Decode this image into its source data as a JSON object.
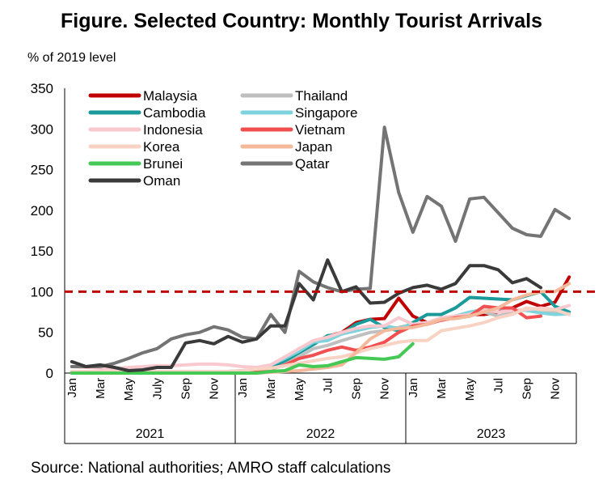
{
  "chart_data": {
    "type": "line",
    "title": "Figure. Selected Country: Monthly Tourist Arrivals",
    "ylabel": "% of 2019 level",
    "source": "Source: National authorities; AMRO staff calculations",
    "ylim": [
      0,
      350
    ],
    "yticks": [
      "0",
      "50",
      "100",
      "150",
      "200",
      "250",
      "300",
      "350"
    ],
    "ytick_values": [
      0,
      50,
      100,
      150,
      200,
      250,
      300,
      350
    ],
    "month_tick_labels": [
      "Jan",
      "Mar",
      "May",
      "July",
      "Sep",
      "Nov",
      "Jan",
      "Mar",
      "May",
      "Jul",
      "Sep",
      "Nov",
      "Jan",
      "Mar",
      "May",
      "Jul",
      "Sep",
      "Nov"
    ],
    "years": [
      "2021",
      "2022",
      "2023"
    ],
    "reference_line": {
      "value": 100,
      "color": "#c00000"
    },
    "legend_placement": "top-left",
    "series": [
      {
        "name": "Malaysia",
        "color": "#c00000",
        "values": [
          1,
          1,
          1,
          1,
          1,
          1,
          1,
          1,
          1,
          1,
          1,
          1,
          2,
          3,
          8,
          18,
          30,
          38,
          45,
          50,
          62,
          66,
          67,
          92,
          70,
          62,
          65,
          68,
          72,
          72,
          75,
          80,
          88,
          82,
          87,
          118
        ]
      },
      {
        "name": "Thailand",
        "color": "#bfbfbf",
        "values": [
          2,
          2,
          2,
          2,
          2,
          2,
          2,
          2,
          2,
          2,
          2,
          2,
          3,
          4,
          8,
          12,
          20,
          30,
          34,
          40,
          45,
          50,
          52,
          56,
          60,
          62,
          65,
          70,
          72,
          75,
          70,
          75,
          78,
          75,
          74,
          75
        ]
      },
      {
        "name": "Cambodia",
        "color": "#1a9a9a",
        "values": [
          1,
          1,
          1,
          1,
          1,
          1,
          1,
          1,
          1,
          1,
          1,
          1,
          2,
          3,
          8,
          15,
          25,
          35,
          46,
          48,
          60,
          66,
          56,
          52,
          62,
          72,
          72,
          80,
          93,
          92,
          91,
          90,
          95,
          100,
          82,
          75
        ]
      },
      {
        "name": "Singapore",
        "color": "#7fd3dc",
        "values": [
          2,
          2,
          2,
          2,
          2,
          2,
          2,
          2,
          2,
          2,
          2,
          2,
          3,
          4,
          10,
          18,
          27,
          38,
          40,
          48,
          52,
          56,
          58,
          55,
          60,
          62,
          66,
          70,
          75,
          78,
          80,
          78,
          77,
          74,
          72,
          73
        ]
      },
      {
        "name": "Indonesia",
        "color": "#f9c9cf",
        "values": [
          8,
          7,
          6,
          6,
          7,
          8,
          9,
          9,
          10,
          11,
          11,
          10,
          8,
          7,
          10,
          20,
          30,
          40,
          44,
          50,
          55,
          58,
          58,
          68,
          60,
          62,
          68,
          70,
          72,
          78,
          75,
          77,
          78,
          80,
          78,
          83
        ]
      },
      {
        "name": "Vietnam",
        "color": "#f25050",
        "values": [
          1,
          1,
          1,
          1,
          1,
          1,
          1,
          1,
          1,
          1,
          1,
          1,
          2,
          3,
          5,
          10,
          18,
          22,
          28,
          32,
          28,
          32,
          38,
          50,
          58,
          60,
          65,
          68,
          70,
          82,
          80,
          80,
          68,
          70,
          null,
          null
        ]
      },
      {
        "name": "Korea",
        "color": "#f8d3c3",
        "values": [
          2,
          2,
          2,
          2,
          2,
          2,
          2,
          2,
          2,
          2,
          2,
          2,
          3,
          5,
          6,
          9,
          12,
          15,
          18,
          20,
          25,
          30,
          34,
          38,
          40,
          40,
          52,
          55,
          58,
          62,
          68,
          72,
          80,
          78,
          78,
          72
        ]
      },
      {
        "name": "Japan",
        "color": "#f4b99a",
        "values": [
          0,
          0,
          0,
          0,
          0,
          0,
          0,
          0,
          0,
          0,
          0,
          0,
          0,
          0,
          1,
          2,
          3,
          5,
          7,
          10,
          25,
          42,
          52,
          55,
          56,
          60,
          66,
          67,
          70,
          75,
          80,
          90,
          96,
          100,
          100,
          110
        ]
      },
      {
        "name": "Brunei",
        "color": "#44c955",
        "values": [
          0,
          0,
          0,
          0,
          0,
          0,
          0,
          0,
          0,
          0,
          0,
          0,
          0,
          0,
          2,
          3,
          10,
          8,
          9,
          14,
          19,
          18,
          17,
          20,
          36,
          null,
          null,
          null,
          null,
          null,
          null,
          null,
          null,
          null,
          null,
          null
        ]
      },
      {
        "name": "Qatar",
        "color": "#747474",
        "values": [
          8,
          8,
          8,
          12,
          18,
          25,
          30,
          42,
          47,
          50,
          57,
          53,
          44,
          42,
          72,
          50,
          125,
          112,
          105,
          100,
          103,
          104,
          302,
          222,
          173,
          217,
          205,
          162,
          214,
          216,
          197,
          178,
          170,
          168,
          201,
          190
        ]
      },
      {
        "name": "Oman",
        "color": "#3a3a3a",
        "values": [
          14,
          8,
          10,
          7,
          3,
          4,
          7,
          7,
          37,
          40,
          36,
          45,
          38,
          42,
          58,
          58,
          110,
          90,
          139,
          100,
          106,
          86,
          87,
          98,
          105,
          108,
          103,
          110,
          132,
          132,
          127,
          111,
          116,
          105,
          null,
          null
        ]
      }
    ]
  }
}
